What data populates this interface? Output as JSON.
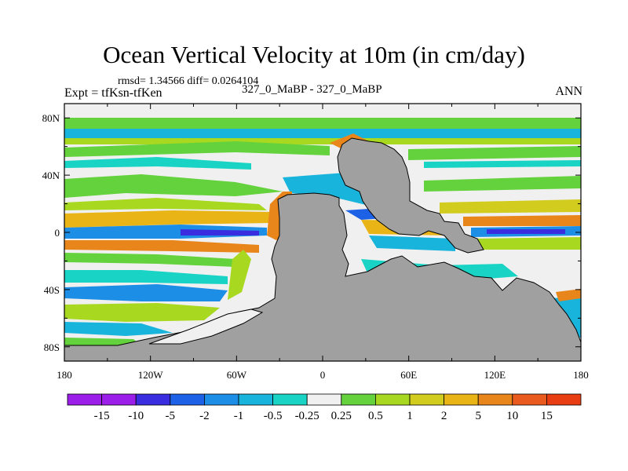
{
  "title": "Ocean Vertical Velocity at 10m (in cm/day)",
  "stats": "rmsd= 1.34566 diff= 0.0264104",
  "expt_label": "Expt = tfKsn-tfKen",
  "runs_label": "327_0_MaBP - 327_0_MaBP",
  "period_label": "ANN",
  "map": {
    "projection": "cylindrical equidistant",
    "lon_range": [
      -180,
      180
    ],
    "lat_range": [
      -90,
      90
    ],
    "y_ticks": [
      "80N",
      "40N",
      "0",
      "40S",
      "80S"
    ],
    "x_ticks": [
      "180",
      "120W",
      "60W",
      "0",
      "60E",
      "120E",
      "180"
    ],
    "land_color": "#a0a0a0"
  },
  "colorbar": {
    "colors": [
      "#9b1fe8",
      "#3a2de0",
      "#1d62e6",
      "#1d8ee6",
      "#19b4dc",
      "#19d4c4",
      "#f0f0f0",
      "#64d23c",
      "#a8d820",
      "#d2cc1e",
      "#e8b416",
      "#e8861c",
      "#e85a1e",
      "#e83c12"
    ],
    "labels": [
      "-15",
      "-10",
      "-5",
      "-2",
      "-1",
      "-0.5",
      "-0.25",
      "0.25",
      "0.5",
      "1",
      "2",
      "5",
      "10",
      "15"
    ]
  }
}
